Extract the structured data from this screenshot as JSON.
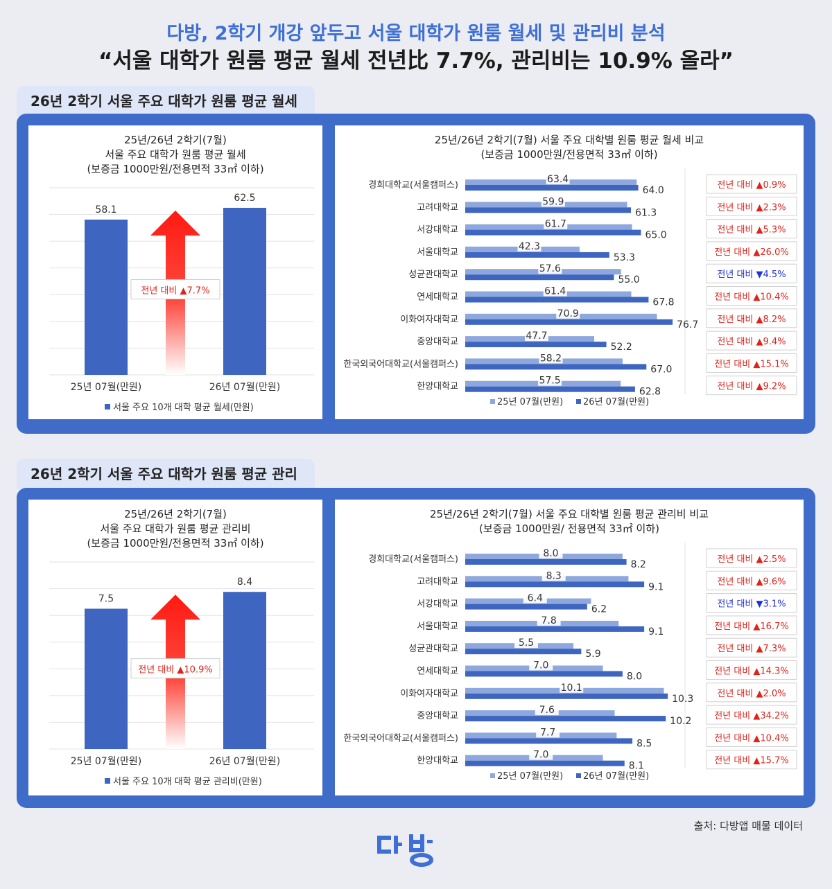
{
  "header": {
    "line1": "다방, 2학기 개강 앞두고 서울 대학가 원룸 월세 및 관리비 분석",
    "line2": "“서울 대학가 원룸 평균 월세 전년比 7.7%, 관리비는 10.9% 올라”"
  },
  "sections": [
    {
      "title": "26년 2학기 서울 주요 대학가 원룸 평균 월세"
    },
    {
      "title": "26년 2학기 서울 주요 대학가 원룸 평균 관리비"
    }
  ],
  "chart_data": [
    {
      "type": "bar",
      "title_lines": [
        "25년/26년 2학기(7월)",
        "서울 주요 대학가 원룸 평균 월세",
        "(보증금 1000만원/전용면적 33㎡ 이하)"
      ],
      "categories": [
        "25년 07월(만원)",
        "26년 07월(만원)"
      ],
      "values": [
        58.1,
        62.5
      ],
      "legend": "서울 주요 10개 대학 평균 월세(만원)",
      "annotation": "전년 대비 ▲7.7%",
      "ylim": [
        0,
        70
      ]
    },
    {
      "type": "bar",
      "orientation": "horizontal",
      "title_lines": [
        "25년/26년 2학기(7월) 서울 주요 대학별 원룸 평균 월세 비교",
        "(보증금 1000만원/전용면적 33㎡ 이하)"
      ],
      "categories": [
        "경희대학교(서울캠퍼스)",
        "고려대학교",
        "서강대학교",
        "서울대학교",
        "성균관대학교",
        "연세대학교",
        "이화여자대학교",
        "중앙대학교",
        "한국외국어대학교(서울캠퍼스)",
        "한양대학교"
      ],
      "series": [
        {
          "name": "25년 07월(만원)",
          "values": [
            63.4,
            59.9,
            61.7,
            42.3,
            57.6,
            61.4,
            70.9,
            47.7,
            58.2,
            57.5
          ]
        },
        {
          "name": "26년 07월(만원)",
          "values": [
            64.0,
            61.3,
            65.0,
            53.3,
            55.0,
            67.8,
            76.7,
            52.2,
            67.0,
            62.8
          ]
        }
      ],
      "changes": [
        "전년 대비 ▲0.9%",
        "전년 대비 ▲2.3%",
        "전년 대비 ▲5.3%",
        "전년 대비 ▲26.0%",
        "전년 대비 ▼4.5%",
        "전년 대비 ▲10.4%",
        "전년 대비 ▲8.2%",
        "전년 대비 ▲9.4%",
        "전년 대비 ▲15.1%",
        "전년 대비 ▲9.2%"
      ],
      "xlim": [
        0,
        80
      ]
    },
    {
      "type": "bar",
      "title_lines": [
        "25년/26년 2학기(7월)",
        "서울 주요 대학가 원룸 평균 관리비",
        "(보증금 1000만원/전용면적 33㎡ 이하)"
      ],
      "categories": [
        "25년 07월(만원)",
        "26년 07월(만원)"
      ],
      "values": [
        7.5,
        8.4
      ],
      "legend": "서울 주요 10개 대학 평균 관리비(만원)",
      "annotation": "전년 대비 ▲10.9%",
      "ylim": [
        0,
        10
      ]
    },
    {
      "type": "bar",
      "orientation": "horizontal",
      "title_lines": [
        "25년/26년 2학기(7월) 서울 주요 대학별 원룸 평균 관리비 비교",
        "(보증금 1000만원/ 전용면적 33㎡ 이하)"
      ],
      "categories": [
        "경희대학교(서울캠퍼스)",
        "고려대학교",
        "서강대학교",
        "서울대학교",
        "성균관대학교",
        "연세대학교",
        "이화여자대학교",
        "중앙대학교",
        "한국외국어대학교(서울캠퍼스)",
        "한양대학교"
      ],
      "series": [
        {
          "name": "25년 07월(만원)",
          "values": [
            8.0,
            8.3,
            6.4,
            7.8,
            5.5,
            7.0,
            10.1,
            7.6,
            7.7,
            7.0
          ]
        },
        {
          "name": "26년 07월(만원)",
          "values": [
            8.2,
            9.1,
            6.2,
            9.1,
            5.9,
            8.0,
            10.3,
            10.2,
            8.5,
            8.1
          ]
        }
      ],
      "changes": [
        "전년 대비 ▲2.5%",
        "전년 대비 ▲9.6%",
        "전년 대비 ▼3.1%",
        "전년 대비 ▲16.7%",
        "전년 대비 ▲7.3%",
        "전년 대비 ▲14.3%",
        "전년 대비 ▲2.0%",
        "전년 대비 ▲34.2%",
        "전년 대비 ▲10.4%",
        "전년 대비 ▲15.7%"
      ],
      "xlim": [
        0,
        11
      ]
    }
  ],
  "colors": {
    "title_blue": "#3d6fd6",
    "panel_blue": "#3f6cc9",
    "bar_dark": "#3e66c0",
    "bar_light": "#8ea7dc",
    "up_red": "#e0221a",
    "down_blue": "#2032d8"
  },
  "footer": {
    "source": "출처: 다방앱 매물 데이터",
    "logo": "다방"
  }
}
